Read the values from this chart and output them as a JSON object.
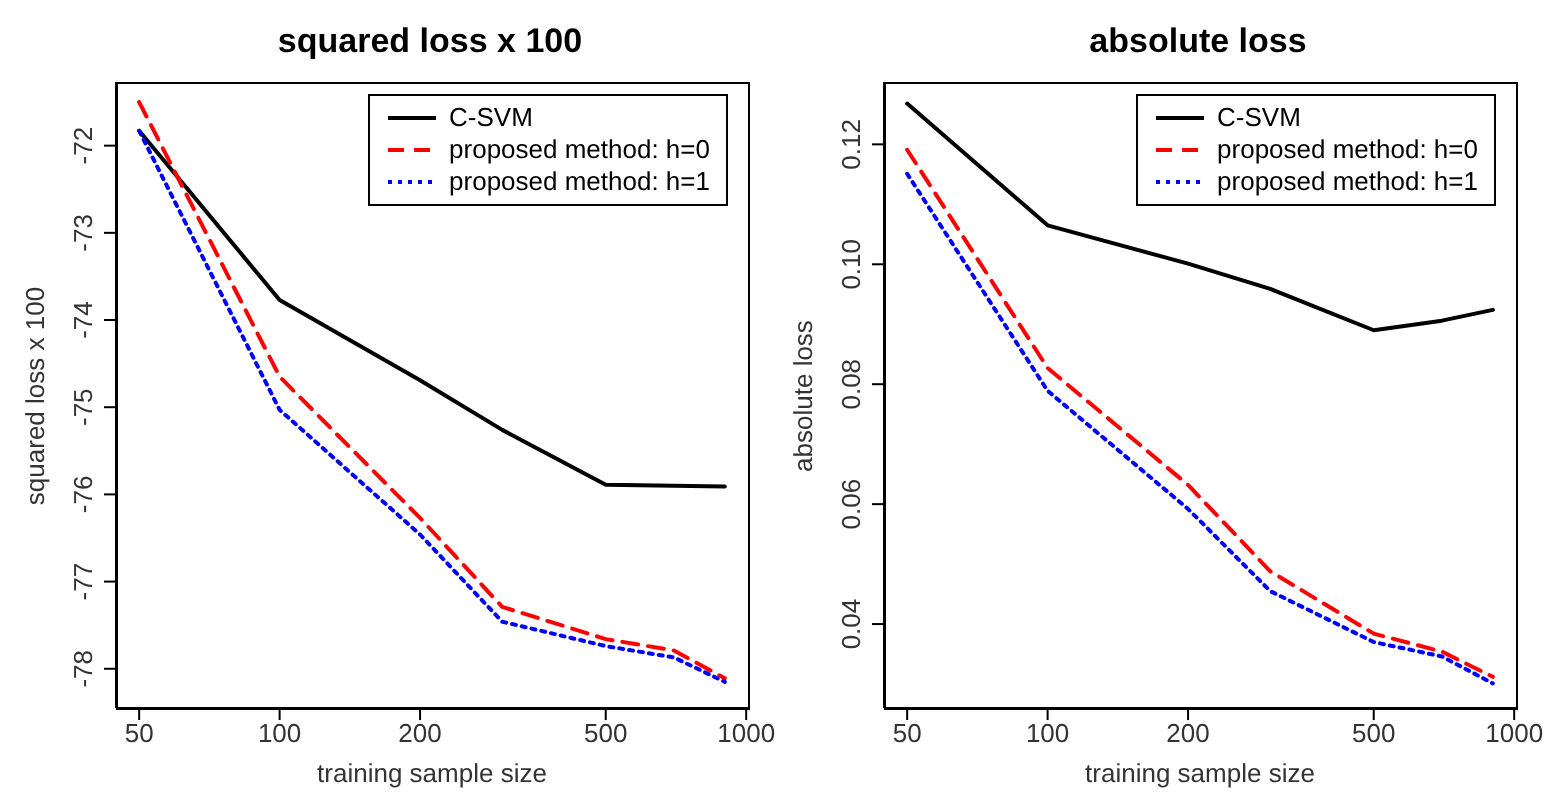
{
  "chart_data": [
    {
      "type": "line",
      "title": "squared loss x 100",
      "xlabel": "training sample size",
      "ylabel": "squared loss x 100",
      "log": "x",
      "x": [
        50,
        100,
        200,
        300,
        500,
        700,
        900
      ],
      "xlim": [
        44.6,
        1009
      ],
      "xticks": [
        50,
        100,
        200,
        500,
        1000
      ],
      "ylim": [
        -78.45,
        -71.27
      ],
      "yticks": [
        -78,
        -77,
        -76,
        -75,
        -74,
        -73,
        -72
      ],
      "grid": false,
      "legend": "top right",
      "series": [
        {
          "name": "C-SVM",
          "color": "#000000",
          "line_style": "solid",
          "values": [
            -71.83,
            -73.77,
            -74.69,
            -75.26,
            -75.89,
            -75.9,
            -75.91
          ]
        },
        {
          "name": "proposed method: h=0",
          "color": "#ff0000",
          "line_style": "dashed",
          "values": [
            -71.5,
            -74.65,
            -76.27,
            -77.29,
            -77.66,
            -77.79,
            -78.11
          ]
        },
        {
          "name": "proposed method: h=1",
          "color": "#0000ff",
          "line_style": "dotted",
          "values": [
            -71.83,
            -75.03,
            -76.46,
            -77.46,
            -77.74,
            -77.87,
            -78.15
          ]
        }
      ]
    },
    {
      "type": "line",
      "title": "absolute loss",
      "xlabel": "training sample size",
      "ylabel": "absolute loss",
      "log": "x",
      "x": [
        50,
        100,
        200,
        300,
        500,
        700,
        900
      ],
      "xlim": [
        44.6,
        1009
      ],
      "xticks": [
        50,
        100,
        200,
        500,
        1000
      ],
      "ylim": [
        0.026,
        0.1304
      ],
      "yticks": [
        {
          "value": 0.04,
          "label": "0.04"
        },
        {
          "value": 0.06,
          "label": "0.06"
        },
        {
          "value": 0.08,
          "label": "0.08"
        },
        {
          "value": 0.1,
          "label": "0.10"
        },
        {
          "value": 0.12,
          "label": "0.12"
        }
      ],
      "grid": false,
      "legend": "top right",
      "series": [
        {
          "name": "C-SVM",
          "color": "#000000",
          "line_style": "solid",
          "values": [
            0.1268,
            0.1065,
            0.1001,
            0.0959,
            0.089,
            0.0906,
            0.0924
          ]
        },
        {
          "name": "proposed method: h=0",
          "color": "#ff0000",
          "line_style": "dashed",
          "values": [
            0.1191,
            0.0827,
            0.0632,
            0.0488,
            0.0384,
            0.0354,
            0.0312
          ]
        },
        {
          "name": "proposed method: h=1",
          "color": "#0000ff",
          "line_style": "dotted",
          "values": [
            0.1151,
            0.0789,
            0.0592,
            0.0455,
            0.037,
            0.0346,
            0.0301
          ]
        }
      ]
    }
  ]
}
